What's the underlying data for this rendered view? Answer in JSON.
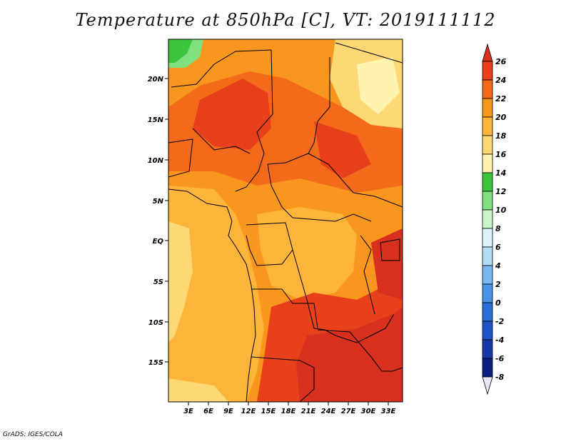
{
  "title": "Temperature at 850hPa [C], VT: 2019111112",
  "credit": "GrADS: IGES/COLA",
  "map": {
    "lat_labels": [
      "20N",
      "15N",
      "10N",
      "5N",
      "EQ",
      "5S",
      "10S",
      "15S"
    ],
    "lon_labels": [
      "3E",
      "6E",
      "9E",
      "12E",
      "15E",
      "18E",
      "21E",
      "24E",
      "27E",
      "30E",
      "33E"
    ]
  },
  "colorbar": {
    "labels": [
      "26",
      "24",
      "22",
      "20",
      "18",
      "16",
      "14",
      "12",
      "10",
      "8",
      "6",
      "4",
      "2",
      "0",
      "-2",
      "-4",
      "-6",
      "-8"
    ],
    "colors": [
      "#d7301f",
      "#e8401a",
      "#f26a1a",
      "#f8961d",
      "#fdb43a",
      "#fed874",
      "#fff3b0",
      "#3cc43c",
      "#7fe07f",
      "#c8f5c8",
      "#dff2fb",
      "#b3dcf7",
      "#78b8ef",
      "#4a93e6",
      "#2a6fd8",
      "#1f52c4",
      "#1838a8",
      "#0c1d80",
      "#e6e6f7"
    ]
  }
}
